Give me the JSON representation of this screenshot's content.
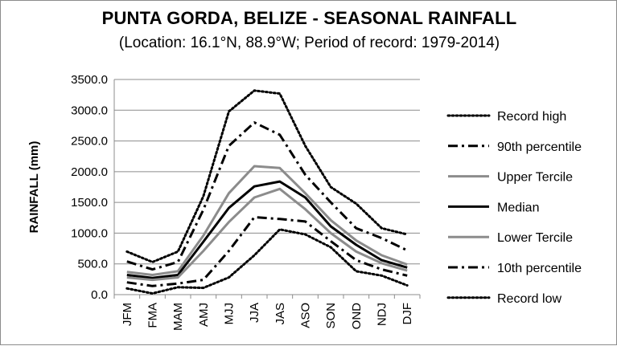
{
  "chart_data": {
    "type": "line",
    "title": "PUNTA GORDA, BELIZE - SEASONAL RAINFALL",
    "subtitle": "(Location: 16.1°N, 88.9°W; Period of record: 1979-2014)",
    "xlabel": "",
    "ylabel": "RAINFALL (mm)",
    "ylim": [
      0,
      3500
    ],
    "yticks": [
      "0.0",
      "500.0",
      "1000.0",
      "1500.0",
      "2000.0",
      "2500.0",
      "3000.0",
      "3500.0"
    ],
    "categories": [
      "JFM",
      "FMA",
      "MAM",
      "AMJ",
      "MJJ",
      "JJA",
      "JAS",
      "ASO",
      "SON",
      "OND",
      "NDJ",
      "DJF"
    ],
    "grid": true,
    "legend_position": "right",
    "series": [
      {
        "name": "Record high",
        "color": "#000000",
        "style": "dotted",
        "values": [
          700,
          530,
          700,
          1600,
          2980,
          3320,
          3270,
          2420,
          1750,
          1480,
          1080,
          980
        ]
      },
      {
        "name": "90th percentile",
        "color": "#000000",
        "style": "dashdot",
        "values": [
          540,
          410,
          530,
          1380,
          2420,
          2800,
          2600,
          1950,
          1500,
          1080,
          920,
          720
        ]
      },
      {
        "name": "Upper Tercile",
        "color": "#8c8c8c",
        "style": "solid",
        "values": [
          370,
          320,
          380,
          960,
          1650,
          2090,
          2060,
          1650,
          1210,
          880,
          640,
          490
        ]
      },
      {
        "name": "Median",
        "color": "#000000",
        "style": "solid",
        "values": [
          320,
          270,
          320,
          860,
          1410,
          1760,
          1840,
          1580,
          1110,
          810,
          560,
          440
        ]
      },
      {
        "name": "Lower Tercile",
        "color": "#8c8c8c",
        "style": "solid",
        "values": [
          280,
          240,
          280,
          710,
          1180,
          1580,
          1720,
          1390,
          1000,
          700,
          510,
          390
        ]
      },
      {
        "name": "10th percentile",
        "color": "#000000",
        "style": "dashdot",
        "values": [
          200,
          140,
          180,
          240,
          710,
          1260,
          1230,
          1190,
          870,
          560,
          410,
          310
        ]
      },
      {
        "name": "Record low",
        "color": "#000000",
        "style": "dotted",
        "values": [
          100,
          20,
          120,
          110,
          280,
          640,
          1060,
          980,
          770,
          380,
          310,
          150
        ]
      }
    ]
  }
}
